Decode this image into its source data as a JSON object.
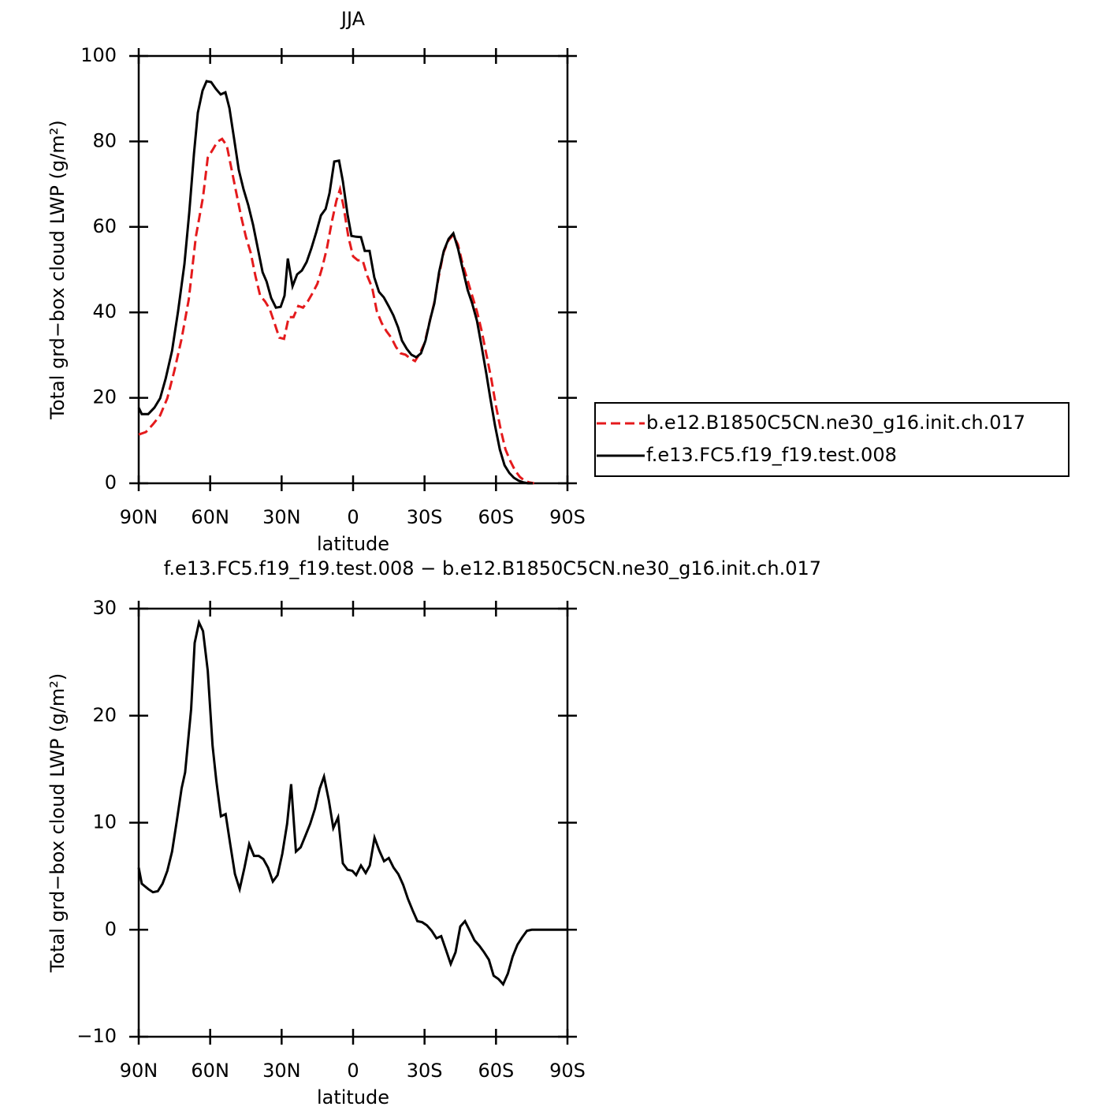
{
  "chart_data": [
    {
      "type": "line",
      "title": "JJA",
      "xlabel": "latitude",
      "ylabel": "Total grd−box cloud LWP (g/m²)",
      "xlim": [
        90,
        -90
      ],
      "xticks": [
        {
          "value": 90,
          "label": "90N"
        },
        {
          "value": 60,
          "label": "60N"
        },
        {
          "value": 30,
          "label": "30N"
        },
        0,
        {
          "value": -30,
          "label": "30S"
        },
        {
          "value": -60,
          "label": "60S"
        },
        {
          "value": -90,
          "label": "90S"
        }
      ],
      "ylim": [
        0,
        100
      ],
      "yticks": [
        0,
        20,
        40,
        60,
        80,
        100
      ],
      "legend": "outside-right",
      "series": [
        {
          "name": "b.e12.B1850C5CN.ne30_g16.init.ch.017",
          "color": "#e41a1c",
          "line_style": "dashed",
          "x": [
            90,
            87,
            84,
            81,
            78,
            75,
            72,
            69,
            66,
            63,
            61,
            59,
            57,
            55,
            53,
            51,
            49,
            47,
            45,
            43,
            41,
            39,
            37,
            35,
            33,
            31,
            29,
            27,
            25,
            23,
            21,
            19,
            17,
            15,
            13,
            11,
            9,
            7,
            5.5,
            4,
            2,
            0,
            -2,
            -4,
            -6,
            -8,
            -10,
            -12,
            -14,
            -16,
            -18,
            -20,
            -22,
            -24,
            -26,
            -28,
            -30,
            -32,
            -34,
            -36,
            -38,
            -40,
            -42,
            -44,
            -46,
            -48,
            -50,
            -52,
            -54,
            -56,
            -58,
            -60,
            -62,
            -64,
            -66,
            -68,
            -70,
            -72,
            -74,
            -76
          ],
          "values": [
            11.4,
            12,
            13.8,
            15.9,
            19.9,
            26.4,
            33.8,
            43,
            57.7,
            67,
            76.2,
            78,
            79.9,
            80.6,
            79,
            73.4,
            67.9,
            62.4,
            57.7,
            54,
            48.5,
            43.9,
            42.6,
            40.8,
            37.5,
            34.1,
            33.8,
            38.9,
            38.9,
            41.5,
            41.1,
            42.6,
            44.5,
            46.7,
            50.4,
            55,
            61,
            66.1,
            68.8,
            64.8,
            57.7,
            53.1,
            52.2,
            52.2,
            48.5,
            45.8,
            40.2,
            37.5,
            35.6,
            34.1,
            31.9,
            30.4,
            30.1,
            29.2,
            28.6,
            30.4,
            32.8,
            37.5,
            42.1,
            48.5,
            54,
            56.8,
            58.1,
            55.9,
            51.3,
            47.6,
            43.9,
            40.2,
            35.6,
            30.1,
            24.5,
            18.1,
            12.5,
            7.9,
            5.2,
            3,
            1.5,
            0.6,
            0.2,
            0
          ]
        },
        {
          "name": "f.e13.FC5.f19_f19.test.008",
          "color": "#000000",
          "line_style": "solid",
          "x": [
            90,
            88.7,
            86,
            83.4,
            81,
            78.7,
            76,
            73.5,
            70.8,
            68.8,
            66.8,
            65.2,
            63.2,
            61.5,
            59.6,
            57.6,
            55.6,
            53.6,
            51.9,
            50,
            48,
            46,
            44,
            42,
            40,
            38,
            36.3,
            34.4,
            32.4,
            30.4,
            28.8,
            27.4,
            25.4,
            23.5,
            21.5,
            19.5,
            17.5,
            15.5,
            13.5,
            11.5,
            9.9,
            7.9,
            5.9,
            4.3,
            2.3,
            0.7,
            -1.3,
            -3.3,
            -4.9,
            -6.9,
            -8.9,
            -10.9,
            -12.9,
            -14.9,
            -16.9,
            -18.9,
            -20.5,
            -22.5,
            -24.5,
            -26.5,
            -28.5,
            -30.4,
            -32.4,
            -34.1,
            -36.1,
            -38.1,
            -40.1,
            -42.1,
            -44.1,
            -46.1,
            -48.1,
            -50,
            -52,
            -54,
            -56,
            -57.6,
            -59.6,
            -61.6,
            -63.6,
            -65.6,
            -67.5,
            -69.5,
            -71.5,
            -73.5,
            -75.5
          ],
          "values": [
            17.7,
            16.2,
            16.2,
            17.7,
            19.9,
            24.5,
            31,
            40.2,
            51.3,
            63.3,
            77.1,
            86.7,
            91.9,
            94.1,
            93.9,
            92.3,
            91,
            91.5,
            87.8,
            80.8,
            73.4,
            68.8,
            65.1,
            60.5,
            55,
            49.4,
            47.2,
            43.4,
            41.1,
            41.3,
            43.9,
            52.6,
            46.1,
            48.9,
            49.8,
            51.8,
            55,
            58.7,
            62.7,
            64.2,
            67.9,
            75.3,
            75.5,
            70.7,
            62.9,
            57.9,
            57.7,
            57.6,
            54.4,
            54.4,
            48.2,
            44.8,
            43.5,
            41.5,
            39.3,
            36.5,
            33.4,
            31.5,
            30.1,
            29.5,
            30.4,
            33.4,
            38.4,
            42.1,
            49.4,
            54.4,
            57.2,
            58.5,
            54.8,
            50,
            45.2,
            42.1,
            38,
            31.9,
            25.5,
            19.9,
            13.5,
            7.9,
            4.2,
            2.4,
            1.3,
            0.6,
            0.2,
            0,
            0
          ]
        }
      ]
    },
    {
      "type": "line",
      "title": "f.e13.FC5.f19_f19.test.008 − b.e12.B1850C5CN.ne30_g16.init.ch.017",
      "xlabel": "latitude",
      "ylabel": "Total grd−box cloud LWP (g/m²)",
      "xlim": [
        90,
        -90
      ],
      "xticks": [
        {
          "value": 90,
          "label": "90N"
        },
        {
          "value": 60,
          "label": "60N"
        },
        {
          "value": 30,
          "label": "30N"
        },
        0,
        {
          "value": -30,
          "label": "30S"
        },
        {
          "value": -60,
          "label": "60S"
        },
        {
          "value": -90,
          "label": "90S"
        }
      ],
      "ylim": [
        -10,
        30
      ],
      "yticks": [
        {
          "value": -10,
          "label": "−10"
        },
        0,
        10,
        20,
        30
      ],
      "series": [
        {
          "color": "#000000",
          "line_style": "solid",
          "x": [
            90,
            88.7,
            86,
            84,
            82,
            80,
            78,
            76,
            74,
            72,
            70.5,
            68,
            66.5,
            64.7,
            63,
            61,
            59,
            57.4,
            55.5,
            53.5,
            51.6,
            49.6,
            47.6,
            45.6,
            43.6,
            41.6,
            39.6,
            37.7,
            35.7,
            33.7,
            31.7,
            29.7,
            27.7,
            26,
            24,
            22,
            20,
            18,
            16,
            14,
            12.2,
            10.2,
            8.3,
            6.3,
            4.3,
            2.3,
            0.3,
            -1.3,
            -3.3,
            -5.3,
            -7,
            -9,
            -11,
            -13,
            -15,
            -17,
            -19,
            -21,
            -23,
            -25,
            -27,
            -29,
            -31,
            -33,
            -35,
            -37,
            -39,
            -41,
            -43,
            -45,
            -47,
            -49,
            -51,
            -53,
            -55,
            -57,
            -59,
            -61,
            -63,
            -65,
            -67,
            -69,
            -71,
            -73,
            -75,
            -80,
            -85,
            -90
          ],
          "values": [
            5.8,
            4.3,
            3.8,
            3.5,
            3.6,
            4.3,
            5.5,
            7.3,
            10.2,
            13.2,
            14.7,
            20.6,
            26.8,
            28.7,
            27.9,
            24.2,
            17.2,
            13.9,
            10.6,
            10.8,
            8,
            5.2,
            3.8,
            5.8,
            8,
            6.9,
            6.9,
            6.6,
            5.8,
            4.5,
            5.1,
            7.1,
            9.9,
            13.6,
            7.3,
            7.7,
            8.8,
            9.9,
            11.3,
            13.2,
            14.3,
            12.1,
            9.5,
            10.5,
            6.2,
            5.6,
            5.5,
            5.1,
            6,
            5.3,
            6,
            8.6,
            7.4,
            6.4,
            6.7,
            5.8,
            5.2,
            4.2,
            2.9,
            1.8,
            0.8,
            0.7,
            0.4,
            -0.1,
            -0.8,
            -0.6,
            -1.9,
            -3.2,
            -2.1,
            0.3,
            0.8,
            -0.1,
            -1,
            -1.5,
            -2.1,
            -2.8,
            -4.3,
            -4.6,
            -5.1,
            -4.1,
            -2.5,
            -1.4,
            -0.7,
            -0.1,
            0,
            0,
            0,
            0
          ]
        }
      ]
    }
  ]
}
